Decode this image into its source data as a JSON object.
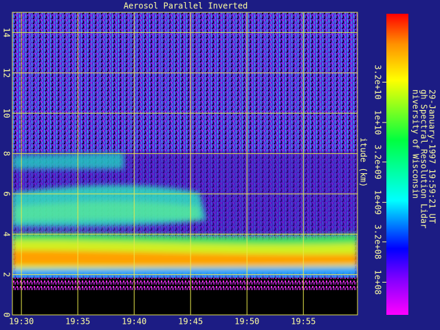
{
  "chart_data": {
    "type": "heatmap",
    "title": "Aerosol Parallel Inverted",
    "y_label": "itude (km)",
    "xlim": [
      29.2,
      59.8
    ],
    "xticks": [
      {
        "value": 30,
        "label": "19:30"
      },
      {
        "value": 35,
        "label": "19:35"
      },
      {
        "value": 40,
        "label": "19:40"
      },
      {
        "value": 45,
        "label": "19:45"
      },
      {
        "value": 50,
        "label": "19:50"
      },
      {
        "value": 55,
        "label": "19:55"
      }
    ],
    "ylim": [
      0,
      15
    ],
    "yticks": [
      0,
      2,
      4,
      6,
      8,
      10,
      12,
      14
    ],
    "grid": true,
    "colorbar": {
      "scale": "log",
      "lim": [
        39000000,
        230000000000
      ],
      "ticks": [
        {
          "value": 100000000,
          "label": "1e+08"
        },
        {
          "value": 320000000,
          "label": "3.2e+08"
        },
        {
          "value": 1000000000,
          "label": "1e+09"
        },
        {
          "value": 3200000000,
          "label": "3.2e+09"
        },
        {
          "value": 10000000000,
          "label": "1e+10"
        },
        {
          "value": 32000000000,
          "label": "3.2e+10"
        }
      ]
    },
    "annotations": [
      "niversity of Wisconsin",
      "gh Spectral Resolution Lidar",
      "29-January-1997 19:59:21 UT"
    ]
  }
}
